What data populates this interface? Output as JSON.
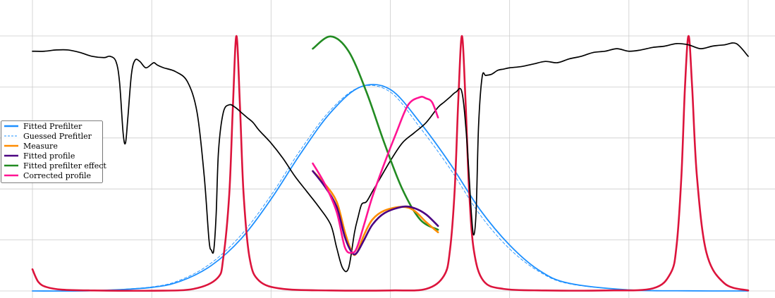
{
  "chart_data": {
    "type": "line",
    "title": "",
    "xlabel": "",
    "ylabel": "",
    "xlim": [
      0,
      6
    ],
    "ylim": [
      0,
      1
    ],
    "grid": true,
    "legend_placement": "center-left",
    "xticks": [
      0,
      1,
      2,
      3,
      4,
      5,
      6
    ],
    "yticks": [
      0,
      0.2,
      0.4,
      0.6,
      0.8,
      1.0
    ],
    "colors": {
      "fitted_prefilter": "#1e90ff",
      "guessed_prefilter": "#1e90ff",
      "measure": "#ff8c00",
      "fitted_profile": "#4b0082",
      "fitted_prefilter_effect": "#228b22",
      "corrected_profile": "#ff1493",
      "transmission_peaks": "#dc143c",
      "spectrum": "#000000",
      "grid": "#cccccc"
    },
    "legend": [
      {
        "label": "Fitted Prefilter",
        "key": "fitted_prefilter",
        "style": "solid"
      },
      {
        "label": "Guessed Prefitler",
        "key": "guessed_prefilter",
        "style": "dashed"
      },
      {
        "label": "Measure",
        "key": "measure",
        "style": "solid"
      },
      {
        "label": "Fitted profile",
        "key": "fitted_profile",
        "style": "solid"
      },
      {
        "label": "Fitted prefilter effect",
        "key": "fitted_prefilter_effect",
        "style": "solid"
      },
      {
        "label": "Corrected profile",
        "key": "corrected_profile",
        "style": "solid"
      }
    ],
    "series": [
      {
        "key": "fitted_prefilter",
        "width": 1.8,
        "x": [
          0,
          0.5,
          1,
          1.25,
          1.5,
          1.75,
          2,
          2.25,
          2.5,
          2.75,
          3,
          3.25,
          3.5,
          3.75,
          4,
          4.25,
          4.5,
          5,
          5.5,
          6
        ],
        "y": [
          0,
          0.001,
          0.014,
          0.04,
          0.1,
          0.205,
          0.36,
          0.54,
          0.7,
          0.8,
          0.79,
          0.66,
          0.5,
          0.32,
          0.18,
          0.08,
          0.03,
          0.004,
          0.0005,
          0
        ]
      },
      {
        "key": "guessed_prefilter",
        "width": 0.9,
        "dash": "4,3",
        "x": [
          0,
          0.5,
          1,
          1.25,
          1.5,
          1.75,
          2,
          2.25,
          2.5,
          2.75,
          3,
          3.25,
          3.5,
          3.75,
          4,
          4.25,
          4.5,
          5,
          5.5,
          6
        ],
        "y": [
          0,
          0.001,
          0.016,
          0.045,
          0.11,
          0.22,
          0.375,
          0.555,
          0.71,
          0.8,
          0.78,
          0.64,
          0.48,
          0.3,
          0.165,
          0.075,
          0.028,
          0.004,
          0.0005,
          0
        ]
      },
      {
        "key": "transmission_peaks",
        "width": 2.6,
        "x": [
          0,
          0.05,
          0.12,
          0.25,
          0.5,
          1,
          1.35,
          1.55,
          1.6,
          1.65,
          1.68,
          1.71,
          1.74,
          1.77,
          1.82,
          1.9,
          2.1,
          2.5,
          3,
          3.3,
          3.45,
          3.5,
          3.54,
          3.57,
          3.6,
          3.63,
          3.66,
          3.7,
          3.78,
          3.95,
          4.3,
          4.8,
          5.2,
          5.35,
          5.4,
          5.44,
          5.47,
          5.5,
          5.53,
          5.57,
          5.65,
          5.8,
          6
        ],
        "y": [
          0.085,
          0.035,
          0.015,
          0.005,
          0.002,
          0.001,
          0.008,
          0.05,
          0.13,
          0.38,
          0.72,
          1.0,
          0.72,
          0.38,
          0.13,
          0.04,
          0.008,
          0.002,
          0.002,
          0.008,
          0.06,
          0.16,
          0.4,
          0.75,
          1.0,
          0.75,
          0.4,
          0.16,
          0.04,
          0.008,
          0.002,
          0.002,
          0.01,
          0.07,
          0.18,
          0.45,
          0.8,
          1.0,
          0.8,
          0.45,
          0.15,
          0.03,
          0.002
        ]
      },
      {
        "key": "spectrum",
        "width": 1.7,
        "x": [
          0,
          0.1,
          0.2,
          0.3,
          0.4,
          0.5,
          0.6,
          0.65,
          0.7,
          0.73,
          0.76,
          0.78,
          0.8,
          0.83,
          0.86,
          0.9,
          0.95,
          1.0,
          1.02,
          1.05,
          1.1,
          1.2,
          1.3,
          1.38,
          1.44,
          1.48,
          1.5,
          1.52,
          1.54,
          1.56,
          1.6,
          1.65,
          1.7,
          1.75,
          1.8,
          1.85,
          1.9,
          2.0,
          2.1,
          2.2,
          2.3,
          2.4,
          2.5,
          2.55,
          2.6,
          2.65,
          2.7,
          2.73,
          2.76,
          2.8,
          2.85,
          2.9,
          3.0,
          3.1,
          3.2,
          3.3,
          3.4,
          3.45,
          3.5,
          3.55,
          3.6,
          3.64,
          3.68,
          3.7,
          3.72,
          3.74,
          3.77,
          3.8,
          3.85,
          3.9,
          3.95,
          4.0,
          4.1,
          4.2,
          4.3,
          4.4,
          4.5,
          4.6,
          4.7,
          4.8,
          4.9,
          5.0,
          5.1,
          5.2,
          5.3,
          5.4,
          5.5,
          5.6,
          5.7,
          5.8,
          5.9,
          6.0
        ],
        "y": [
          0.94,
          0.94,
          0.945,
          0.945,
          0.935,
          0.92,
          0.915,
          0.92,
          0.9,
          0.82,
          0.62,
          0.58,
          0.68,
          0.85,
          0.905,
          0.9,
          0.875,
          0.89,
          0.895,
          0.885,
          0.875,
          0.86,
          0.82,
          0.7,
          0.45,
          0.2,
          0.16,
          0.16,
          0.3,
          0.55,
          0.7,
          0.73,
          0.72,
          0.7,
          0.68,
          0.66,
          0.63,
          0.58,
          0.52,
          0.45,
          0.39,
          0.33,
          0.26,
          0.17,
          0.09,
          0.09,
          0.23,
          0.29,
          0.34,
          0.35,
          0.39,
          0.43,
          0.51,
          0.58,
          0.62,
          0.66,
          0.72,
          0.74,
          0.76,
          0.78,
          0.78,
          0.6,
          0.3,
          0.22,
          0.32,
          0.65,
          0.84,
          0.845,
          0.85,
          0.865,
          0.87,
          0.875,
          0.88,
          0.89,
          0.9,
          0.895,
          0.91,
          0.92,
          0.935,
          0.94,
          0.95,
          0.94,
          0.945,
          0.955,
          0.96,
          0.97,
          0.965,
          0.95,
          0.96,
          0.965,
          0.97,
          0.92
        ]
      },
      {
        "key": "fitted_prefilter_effect",
        "width": 2.6,
        "x": [
          2.35,
          2.5,
          2.65,
          2.8,
          2.95,
          3.1,
          3.25,
          3.4
        ],
        "y": [
          0.95,
          0.998,
          0.94,
          0.78,
          0.58,
          0.4,
          0.28,
          0.24
        ]
      },
      {
        "key": "measure",
        "width": 2.6,
        "x": [
          2.35,
          2.45,
          2.55,
          2.62,
          2.68,
          2.72,
          2.78,
          2.85,
          2.95,
          3.1,
          3.2,
          3.3,
          3.4
        ],
        "y": [
          0.47,
          0.42,
          0.35,
          0.23,
          0.15,
          0.15,
          0.22,
          0.28,
          0.315,
          0.33,
          0.315,
          0.27,
          0.23
        ]
      },
      {
        "key": "fitted_profile",
        "width": 2.6,
        "x": [
          2.35,
          2.45,
          2.55,
          2.62,
          2.68,
          2.72,
          2.78,
          2.85,
          2.95,
          3.1,
          3.2,
          3.3,
          3.4
        ],
        "y": [
          0.47,
          0.41,
          0.33,
          0.21,
          0.15,
          0.15,
          0.2,
          0.26,
          0.305,
          0.33,
          0.325,
          0.3,
          0.255
        ]
      },
      {
        "key": "corrected_profile",
        "width": 2.6,
        "x": [
          2.35,
          2.45,
          2.55,
          2.62,
          2.68,
          2.72,
          2.78,
          2.85,
          2.95,
          3.05,
          3.15,
          3.25,
          3.3,
          3.35,
          3.4
        ],
        "y": [
          0.5,
          0.42,
          0.31,
          0.17,
          0.15,
          0.17,
          0.26,
          0.37,
          0.5,
          0.62,
          0.73,
          0.76,
          0.755,
          0.74,
          0.68
        ]
      }
    ]
  }
}
